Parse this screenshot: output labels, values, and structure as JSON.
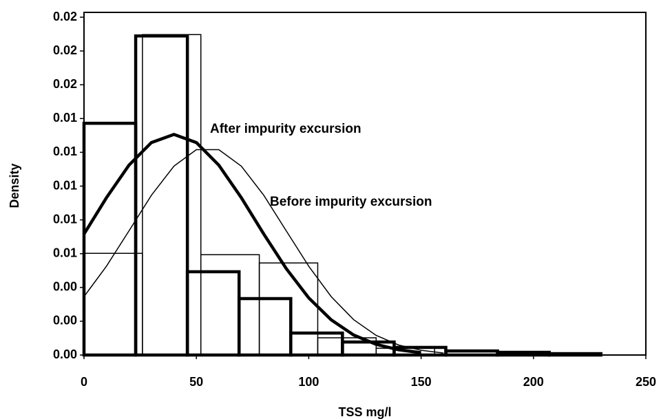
{
  "chart_data": {
    "type": "histogram",
    "xlabel": "TSS mg/l",
    "ylabel": "Density",
    "xlim": [
      0,
      250
    ],
    "xticks": [
      0,
      50,
      100,
      150,
      200,
      250
    ],
    "ylim": [
      0,
      0.02
    ],
    "yticks": [
      {
        "value": 0,
        "label": "0.00"
      },
      {
        "value": 0.002,
        "label": "0.00"
      },
      {
        "value": 0.004,
        "label": "0.00"
      },
      {
        "value": 0.006,
        "label": "0.01"
      },
      {
        "value": 0.008,
        "label": "0.01"
      },
      {
        "value": 0.01,
        "label": "0.01"
      },
      {
        "value": 0.012,
        "label": "0.01"
      },
      {
        "value": 0.014,
        "label": "0.01"
      },
      {
        "value": 0.016,
        "label": "0.02"
      },
      {
        "value": 0.018,
        "label": "0.02"
      },
      {
        "value": 0.02,
        "label": "0.02"
      }
    ],
    "curve_x": [
      0,
      10,
      20,
      30,
      40,
      50,
      60,
      70,
      80,
      90,
      100,
      110,
      120,
      130,
      140,
      150,
      160
    ],
    "series": [
      {
        "name": "After impurity excursion",
        "color": "#000000",
        "bins": [
          0,
          23,
          46,
          69,
          92,
          115,
          138,
          161,
          184,
          207,
          230
        ],
        "values": [
          0.01372,
          0.01889,
          0.00493,
          0.00334,
          0.0013,
          0.00077,
          0.00045,
          0.00024,
          0.00016,
          8e-05
        ],
        "curve": [
          0.00716,
          0.00931,
          0.01124,
          0.01258,
          0.01306,
          0.01258,
          0.01124,
          0.00931,
          0.00716,
          0.00511,
          0.00338,
          0.00208,
          0.00118,
          0.00063,
          0.00031,
          0.00014,
          null
        ]
      },
      {
        "name": "Before impurity excursion",
        "color": "#000000",
        "bins": [
          0,
          26,
          52,
          78,
          104,
          130,
          156
        ],
        "values": [
          0.00602,
          0.01897,
          0.00594,
          0.00545,
          0.00102,
          0.0004
        ],
        "curve": [
          0.00346,
          0.00526,
          0.00735,
          0.00946,
          0.01118,
          0.01216,
          0.01216,
          0.01118,
          0.00946,
          0.00735,
          0.00526,
          0.00346,
          0.00209,
          0.00116,
          0.00059,
          0.00028,
          0.00012
        ]
      }
    ]
  }
}
